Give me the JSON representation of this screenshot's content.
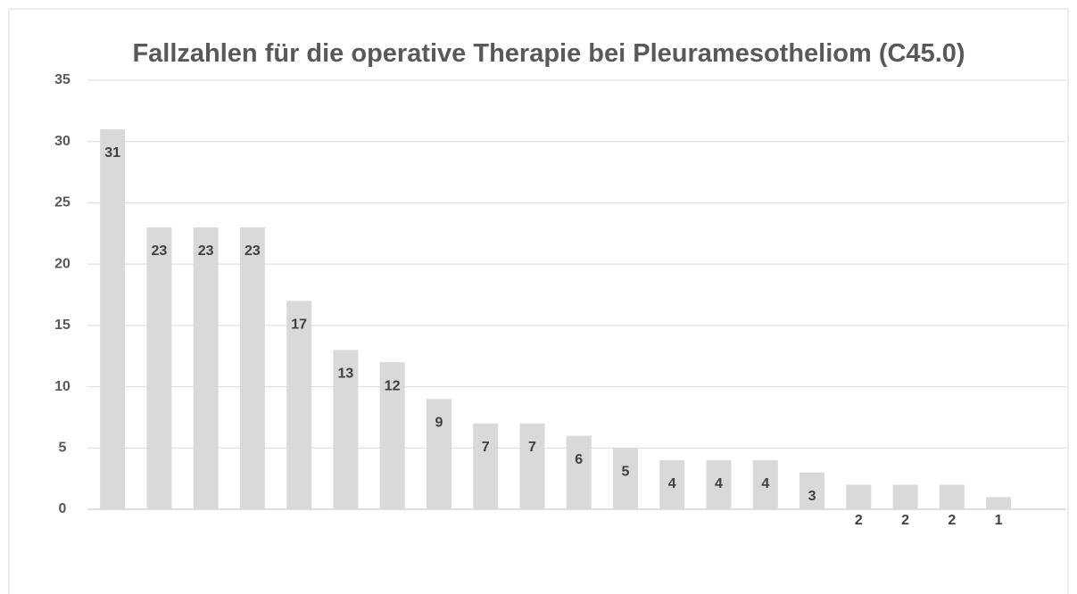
{
  "chart_data": {
    "type": "bar",
    "title": "Fallzahlen für die operative Therapie bei Pleuramesotheliom (C45.0)",
    "categories": [
      null,
      null,
      null,
      null,
      null,
      null,
      null,
      null,
      null,
      null,
      null,
      null,
      null,
      null,
      null,
      null,
      null,
      null,
      null,
      null
    ],
    "values": [
      31,
      23,
      23,
      23,
      17,
      13,
      12,
      9,
      7,
      7,
      6,
      5,
      4,
      4,
      4,
      3,
      2,
      2,
      2,
      1
    ],
    "color": "#d9d9d9",
    "ylim": [
      0,
      35
    ],
    "yticks": [
      0,
      5,
      10,
      15,
      20,
      25,
      30,
      35
    ],
    "grid": true
  }
}
